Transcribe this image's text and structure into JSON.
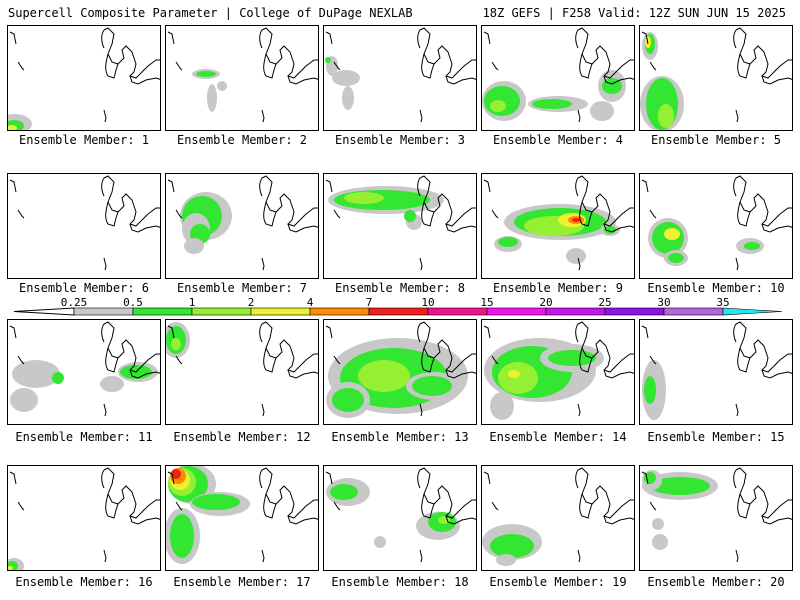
{
  "header": {
    "left": "Supercell Composite Parameter | College of DuPage NEXLAB",
    "right": "18Z GEFS | F258 Valid: 12Z SUN JUN 15 2025"
  },
  "legend": {
    "labels": [
      "0.25",
      "0.5",
      "1",
      "2",
      "4",
      "7",
      "10",
      "15",
      "20",
      "25",
      "30",
      "35"
    ],
    "colors": [
      "#c8c8c8",
      "#32e632",
      "#96f032",
      "#f0f032",
      "#ff8c00",
      "#f01e1e",
      "#f0148c",
      "#f014f0",
      "#c814f0",
      "#8c14e6",
      "#b464dc",
      "#28e6f0"
    ]
  },
  "panels": [
    {
      "label": "Ensemble Member: 1"
    },
    {
      "label": "Ensemble Member: 2"
    },
    {
      "label": "Ensemble Member: 3"
    },
    {
      "label": "Ensemble Member: 4"
    },
    {
      "label": "Ensemble Member: 5"
    },
    {
      "label": "Ensemble Member: 6"
    },
    {
      "label": "Ensemble Member: 7"
    },
    {
      "label": "Ensemble Member: 8"
    },
    {
      "label": "Ensemble Member: 9"
    },
    {
      "label": "Ensemble Member: 10"
    },
    {
      "label": "Ensemble Member: 11"
    },
    {
      "label": "Ensemble Member: 12"
    },
    {
      "label": "Ensemble Member: 13"
    },
    {
      "label": "Ensemble Member: 14"
    },
    {
      "label": "Ensemble Member: 15"
    },
    {
      "label": "Ensemble Member: 16"
    },
    {
      "label": "Ensemble Member: 17"
    },
    {
      "label": "Ensemble Member: 18"
    },
    {
      "label": "Ensemble Member: 19"
    },
    {
      "label": "Ensemble Member: 20"
    }
  ]
}
